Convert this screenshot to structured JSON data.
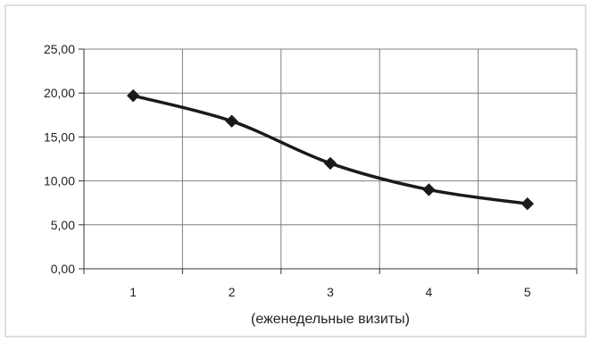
{
  "chart_data": {
    "type": "line",
    "x": [
      1,
      2,
      3,
      4,
      5
    ],
    "categories": [
      "1",
      "2",
      "3",
      "4",
      "5"
    ],
    "series": [
      {
        "values": [
          19.7,
          16.8,
          12.0,
          9.0,
          7.4
        ]
      }
    ],
    "xlabel": "(еженедельные визиты)",
    "ylabel": "",
    "ylim": [
      0,
      25
    ],
    "yticks": [
      "0,00",
      "5,00",
      "10,00",
      "15,00",
      "20,00",
      "25,00"
    ],
    "grid": true,
    "marker": "diamond",
    "colors": {
      "line": "#1a1a1a",
      "grid": "#7f7f7f",
      "frame": "#bfbfbf"
    }
  }
}
